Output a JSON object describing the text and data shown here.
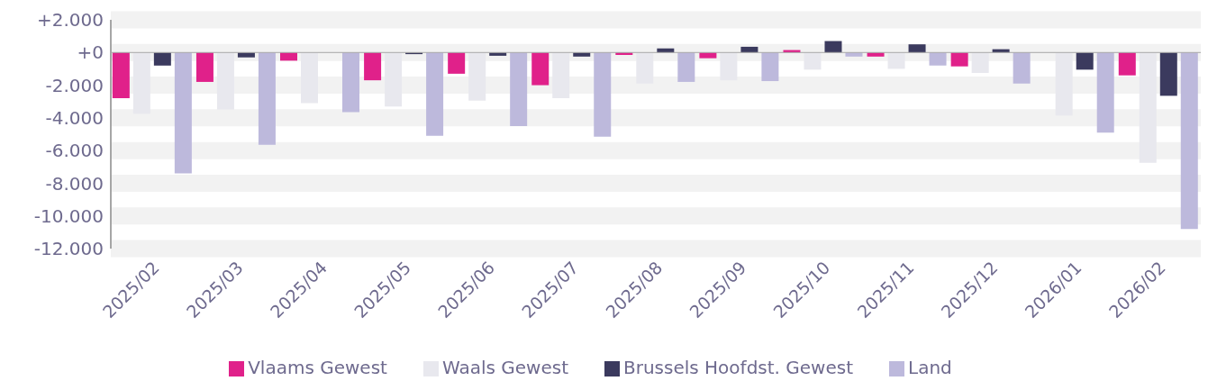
{
  "chart_data": {
    "type": "bar",
    "categories": [
      "2025/02",
      "2025/03",
      "2025/04",
      "2025/05",
      "2025/06",
      "2025/07",
      "2025/08",
      "2025/09",
      "2025/10",
      "2025/11",
      "2025/12",
      "2026/01",
      "2026/02"
    ],
    "series": [
      {
        "name": "Vlaams Gewest",
        "color": "#e0218a",
        "values": [
          -2800,
          -1800,
          -500,
          -1700,
          -1300,
          -2000,
          -150,
          -350,
          150,
          -250,
          -850,
          0,
          -1400
        ]
      },
      {
        "name": "Waals Gewest",
        "color": "#e8e8ee",
        "values": [
          -3750,
          -3500,
          -3100,
          -3300,
          -2950,
          -2800,
          -1900,
          -1700,
          -1050,
          -1000,
          -1250,
          -3850,
          -6750
        ]
      },
      {
        "name": "Brussels Hoofdst. Gewest",
        "color": "#3b3a5e",
        "values": [
          -800,
          -300,
          0,
          -100,
          -200,
          -250,
          250,
          350,
          700,
          500,
          200,
          -1050,
          -2650
        ]
      },
      {
        "name": "Land",
        "color": "#bdb9dc",
        "values": [
          -7400,
          -5650,
          -3650,
          -5100,
          -4500,
          -5150,
          -1800,
          -1750,
          -250,
          -800,
          -1900,
          -4900,
          -10800
        ]
      }
    ],
    "ylim": [
      -12000,
      2000
    ],
    "yticks": [
      {
        "value": 2000,
        "label": "+2.000"
      },
      {
        "value": 0,
        "label": "+0"
      },
      {
        "value": -2000,
        "label": "-2.000"
      },
      {
        "value": -4000,
        "label": "-4.000"
      },
      {
        "value": -6000,
        "label": "-6.000"
      },
      {
        "value": -8000,
        "label": "-8.000"
      },
      {
        "value": -10000,
        "label": "-10.000"
      },
      {
        "value": -12000,
        "label": "-12.000"
      }
    ],
    "grid": "y",
    "ref_lines": [
      {
        "axis": "y",
        "value": 0,
        "color": "#a6a6a6"
      }
    ],
    "legend": "bottom"
  }
}
